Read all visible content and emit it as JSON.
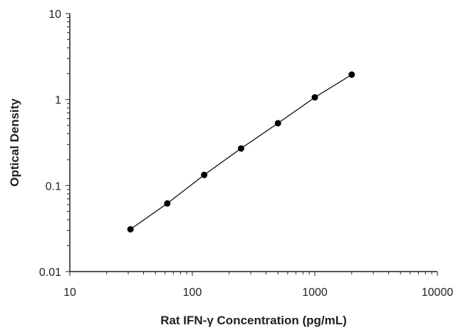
{
  "chart_data": {
    "type": "scatter",
    "title": "",
    "xlabel": "Rat IFN-γ Concentration (pg/mL)",
    "ylabel": "Optical Density",
    "xscale": "log",
    "yscale": "log",
    "xlim": [
      10,
      10000
    ],
    "ylim": [
      0.01,
      10
    ],
    "x_ticks": [
      10,
      100,
      1000,
      10000
    ],
    "x_tick_labels": [
      "10",
      "100",
      "1000",
      "10000"
    ],
    "y_ticks": [
      0.01,
      0.1,
      1,
      10
    ],
    "y_tick_labels": [
      "0.01",
      "0.1",
      "1",
      "10"
    ],
    "grid": false,
    "legend": "none",
    "series": [
      {
        "x": [
          31.25,
          62.5,
          125,
          250,
          500,
          1000,
          2000
        ],
        "y": [
          0.031,
          0.062,
          0.133,
          0.27,
          0.53,
          1.06,
          1.95
        ],
        "fit_line": true
      }
    ],
    "colors": {
      "axis": "#231f20",
      "marker": "#000000",
      "line": "#000000"
    }
  }
}
